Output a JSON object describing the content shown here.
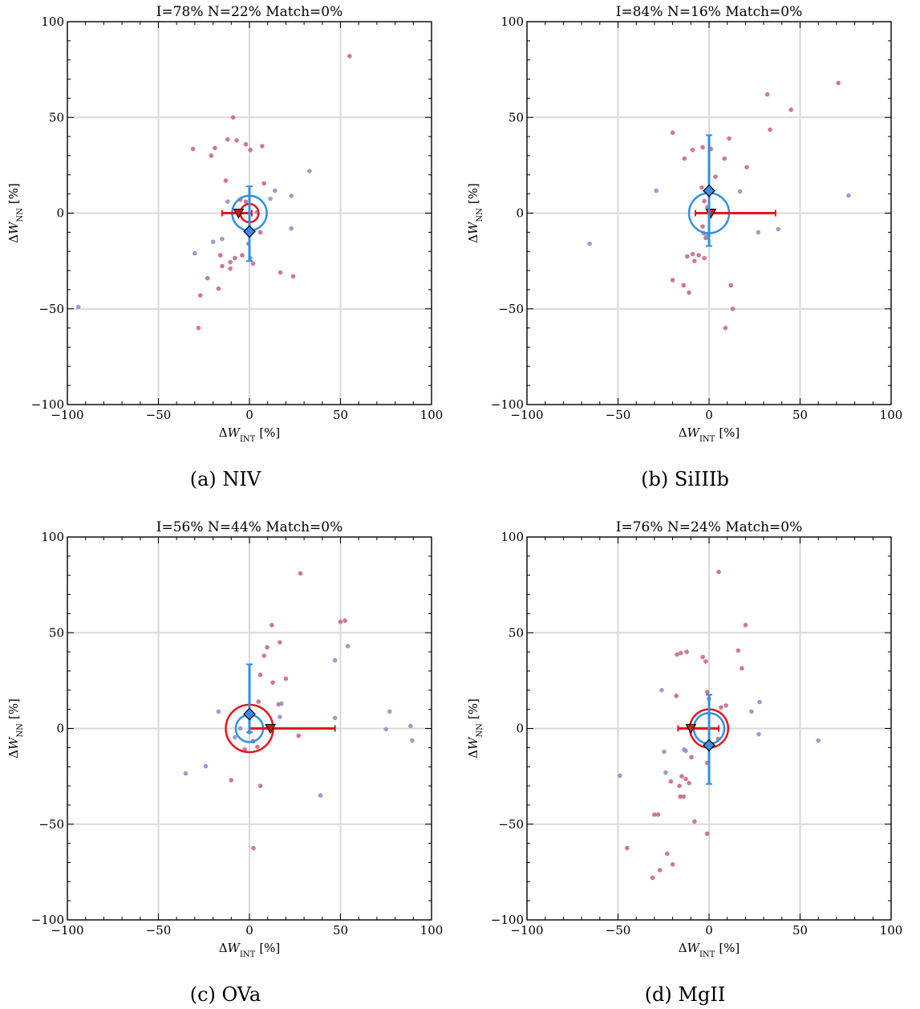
{
  "chart_data": [
    {
      "type": "scatter",
      "title": "I=78% N=22% Match=0%",
      "caption": "(a) NIV",
      "xlabel": [
        "Δ",
        "W",
        "INT",
        "[%]"
      ],
      "ylabel": [
        "Δ",
        "W",
        "NN",
        "[%]"
      ],
      "xlim": [
        -100,
        100
      ],
      "ylim": [
        -100,
        100
      ],
      "xticks": [
        {
          "value": -100,
          "label": "−100"
        },
        {
          "value": -50,
          "label": "−50"
        },
        0,
        50,
        100
      ],
      "yticks": [
        {
          "value": -100,
          "label": "−100"
        },
        {
          "value": -50,
          "label": "−50"
        },
        0,
        50,
        100
      ],
      "grid": true,
      "series": [
        {
          "color": "#c8607f",
          "x": [
            55,
            -9,
            -31,
            -19,
            -12,
            -7,
            -2,
            0.5,
            7,
            -21,
            8,
            -13,
            -5,
            -2,
            -16,
            -15,
            -10.5,
            -10.5,
            -8,
            -4,
            2,
            -27,
            -23,
            -17,
            -28,
            17,
            24,
            6,
            -0.5
          ],
          "y": [
            82,
            50,
            33.5,
            34,
            38.5,
            38,
            36,
            33,
            35,
            30,
            15.5,
            17,
            7,
            6,
            -22,
            -27.7,
            -25.6,
            -29,
            -23.5,
            -22,
            -26.4,
            -43,
            -34,
            -39.4,
            -60,
            -31,
            -33,
            -10,
            -16
          ]
        },
        {
          "color": "#8b8bc8",
          "x": [
            -94,
            33,
            14,
            23,
            23,
            11.5,
            -12,
            -15,
            -20,
            -30,
            0.5,
            4
          ],
          "y": [
            -49,
            22,
            11.7,
            9,
            -8,
            7.5,
            6,
            -13.5,
            -15,
            -21,
            -23.5,
            0.4
          ]
        }
      ],
      "circles": [
        {
          "color": "#2f90e6",
          "radius": 9.5
        },
        {
          "color": "#e8141c",
          "radius": 5
        }
      ],
      "int_mean": {
        "color": "#e8141c",
        "x": -6,
        "y": 0,
        "x_low": -15,
        "x_high": 1.3
      },
      "nn_mean": {
        "color": "#2f90e6",
        "x": 0,
        "y": -9.6,
        "y_low": -25,
        "y_high": 14
      }
    },
    {
      "type": "scatter",
      "title": "I=84% N=16% Match=0%",
      "caption": "(b) SiIIIb",
      "xlabel": [
        "Δ",
        "W",
        "INT",
        "[%]"
      ],
      "ylabel": [
        "Δ",
        "W",
        "NN",
        "[%]"
      ],
      "xlim": [
        -100,
        100
      ],
      "ylim": [
        -100,
        100
      ],
      "xticks": [
        {
          "value": -100,
          "label": "−100"
        },
        {
          "value": -50,
          "label": "−50"
        },
        0,
        50,
        100
      ],
      "yticks": [
        {
          "value": -100,
          "label": "−100"
        },
        {
          "value": -50,
          "label": "−50"
        },
        0,
        50,
        100
      ],
      "grid": true,
      "series": [
        {
          "color": "#c8607f",
          "x": [
            71,
            32,
            45,
            33.5,
            -20,
            -9,
            -3.5,
            1,
            11,
            -13.5,
            8.5,
            20.7,
            3.5,
            -4,
            -2.6,
            -3.5,
            -1.8,
            -9,
            -5.7,
            -2.6,
            -12,
            -8,
            -20,
            -14,
            -11,
            12,
            13,
            9,
            -3,
            -1
          ],
          "y": [
            68,
            62,
            54,
            43.6,
            42,
            33,
            34.4,
            33.5,
            39,
            28.5,
            28.5,
            24,
            19,
            13.4,
            6.3,
            -7,
            -13,
            -21.4,
            -22,
            -23.5,
            -22.6,
            -25,
            -35,
            -37.7,
            -41.5,
            -37.7,
            -50,
            -60,
            -10.5,
            3
          ]
        },
        {
          "color": "#8b8bc8",
          "x": [
            -65.6,
            -29,
            76.6,
            17,
            27,
            38,
            -1.3
          ],
          "y": [
            -16,
            11.7,
            9.2,
            11.3,
            -10,
            -8.4,
            -12
          ]
        }
      ],
      "circles": [
        {
          "color": "#2f90e6",
          "radius": 11
        }
      ],
      "int_mean": {
        "color": "#e8141c",
        "x": 1,
        "y": 0,
        "x_low": -7.5,
        "x_high": 36.5
      },
      "nn_mean": {
        "color": "#2f90e6",
        "x": 0,
        "y": 11.7,
        "y_low": -17.2,
        "y_high": 40.7
      }
    },
    {
      "type": "scatter",
      "title": "I=56% N=44% Match=0%",
      "caption": "(c) OVa",
      "xlabel": [
        "Δ",
        "W",
        "INT",
        "[%]"
      ],
      "ylabel": [
        "Δ",
        "W",
        "NN",
        "[%]"
      ],
      "xlim": [
        -100,
        100
      ],
      "ylim": [
        -100,
        100
      ],
      "xticks": [
        {
          "value": -100,
          "label": "−100"
        },
        {
          "value": -50,
          "label": "−50"
        },
        0,
        50,
        100
      ],
      "yticks": [
        {
          "value": -100,
          "label": "−100"
        },
        {
          "value": -50,
          "label": "−50"
        },
        0,
        50,
        100
      ],
      "grid": true,
      "series": [
        {
          "color": "#c8607f",
          "x": [
            28,
            50,
            52.5,
            12.3,
            16.7,
            9.7,
            8,
            6,
            20,
            12.8,
            5,
            2,
            -2.6,
            4.4,
            -10,
            6,
            2.2,
            27,
            16
          ],
          "y": [
            81,
            55.7,
            56.3,
            54,
            45,
            42.4,
            38,
            28,
            26,
            24,
            14,
            -6.7,
            -11,
            -9.6,
            -27,
            -30,
            -62.5,
            -3.8,
            12.6
          ]
        },
        {
          "color": "#8b8bc8",
          "x": [
            -35,
            -24,
            -17,
            -8,
            -5,
            16.7,
            17.6,
            47,
            54,
            47,
            39,
            77,
            75,
            88.5,
            89.4,
            0
          ],
          "y": [
            -23.5,
            -19.7,
            8.8,
            -4.6,
            0,
            6,
            13,
            35.6,
            43,
            5.5,
            -35,
            8.8,
            -0.4,
            1.3,
            -6.3,
            -2
          ]
        }
      ],
      "circles": [
        {
          "color": "#e8141c",
          "radius": 13
        },
        {
          "color": "#2f90e6",
          "radius": 7.5
        }
      ],
      "int_mean": {
        "color": "#e8141c",
        "x": 11.5,
        "y": 0,
        "x_low": 0,
        "x_high": 47
      },
      "nn_mean": {
        "color": "#2f90e6",
        "x": 0,
        "y": 7.5,
        "y_low": -2,
        "y_high": 33.5
      }
    },
    {
      "type": "scatter",
      "title": "I=76% N=24% Match=0%",
      "caption": "(d) MgII",
      "xlabel": [
        "Δ",
        "W",
        "INT",
        "[%]"
      ],
      "ylabel": [
        "Δ",
        "W",
        "NN",
        "[%]"
      ],
      "xlim": [
        -100,
        100
      ],
      "ylim": [
        -100,
        100
      ],
      "xticks": [
        {
          "value": -100,
          "label": "−100"
        },
        {
          "value": -50,
          "label": "−50"
        },
        0,
        50,
        100
      ],
      "yticks": [
        {
          "value": -100,
          "label": "−100"
        },
        {
          "value": -50,
          "label": "−50"
        },
        0,
        50,
        100
      ],
      "grid": true,
      "series": [
        {
          "color": "#c8607f",
          "x": [
            5.3,
            20,
            16,
            18,
            -12.3,
            -15.5,
            -17.6,
            -3.5,
            -1.8,
            9.3,
            6.6,
            -1,
            -1,
            5,
            -18,
            -21,
            -15,
            -12.8,
            -11,
            -16.3,
            -15.8,
            -14,
            -8,
            -1,
            -23,
            -28,
            -30,
            -20,
            -27,
            -31,
            -45,
            -9.7
          ],
          "y": [
            81.8,
            54,
            40.7,
            31.4,
            40,
            39.4,
            38.6,
            37.3,
            35,
            12,
            11,
            19,
            -18,
            -5.5,
            17,
            -27.7,
            -25,
            -26.4,
            -28.5,
            -30,
            -35.6,
            -35.6,
            -48.6,
            -55,
            -65.4,
            -45,
            -45,
            -71,
            -74,
            -78,
            -62.5,
            -15
          ]
        },
        {
          "color": "#8b8bc8",
          "x": [
            -49,
            -26,
            -24.7,
            -23.8,
            -13.7,
            -12.8,
            0,
            23.3,
            27.8,
            27.3,
            60
          ],
          "y": [
            -24.7,
            20,
            -12.2,
            -23,
            -11,
            -11.7,
            15.5,
            8.8,
            13.8,
            -3,
            -6.3
          ]
        }
      ],
      "circles": [
        {
          "color": "#e8141c",
          "radius": 10.5
        },
        {
          "color": "#2f90e6",
          "radius": 8.4
        }
      ],
      "int_mean": {
        "color": "#e8141c",
        "x": -10,
        "y": 0,
        "x_low": -17,
        "x_high": 5.3
      },
      "nn_mean": {
        "color": "#2f90e6",
        "x": 0,
        "y": -8.8,
        "y_low": -29,
        "y_high": 17.6
      }
    }
  ]
}
